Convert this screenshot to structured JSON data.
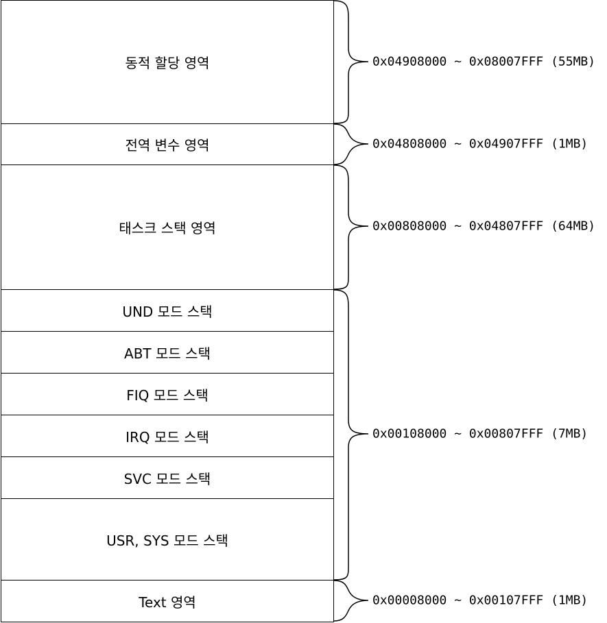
{
  "regions": [
    {
      "label": "동적 할당 영역"
    },
    {
      "label": "전역 변수 영역"
    },
    {
      "label": "태스크 스택 영역"
    },
    {
      "label": "UND 모드 스택"
    },
    {
      "label": "ABT 모드 스택"
    },
    {
      "label": "FIQ 모드 스택"
    },
    {
      "label": "IRQ 모드 스택"
    },
    {
      "label": "SVC 모드 스택"
    },
    {
      "label": "USR, SYS 모드 스택"
    },
    {
      "label": "Text 영역"
    }
  ],
  "ranges": [
    {
      "text": "0x04908000 ~ 0x08007FFF (55MB)"
    },
    {
      "text": "0x04808000 ~ 0x04907FFF (1MB)"
    },
    {
      "text": "0x00808000 ~ 0x04807FFF (64MB)"
    },
    {
      "text": "0x00108000 ~ 0x00807FFF (7MB)"
    },
    {
      "text": "0x00008000 ~ 0x00107FFF (1MB)"
    }
  ],
  "colors": {
    "line": "#000000",
    "background": "#ffffff"
  }
}
